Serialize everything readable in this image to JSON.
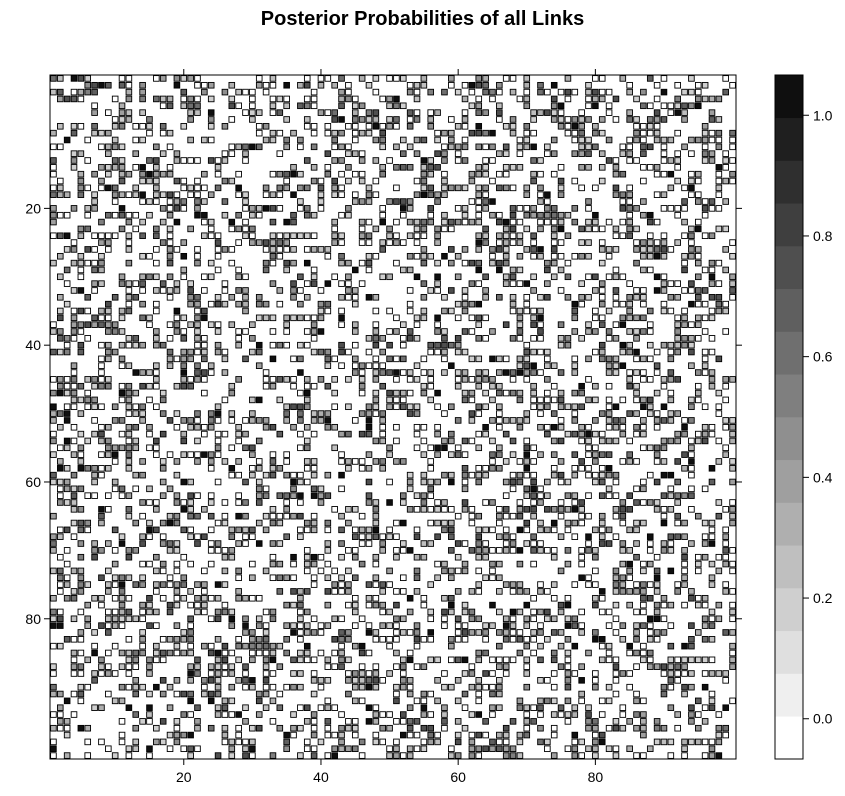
{
  "chart_data": {
    "type": "heatmap",
    "title": "Posterior Probabilities of all Links",
    "xlabel": "",
    "ylabel": "",
    "n_rows": 100,
    "n_cols": 100,
    "xlim": [
      1,
      100
    ],
    "ylim": [
      100,
      1
    ],
    "x_ticks": [
      20,
      40,
      60,
      80
    ],
    "y_ticks": [
      20,
      40,
      60,
      80
    ],
    "grid": false,
    "colorkey": {
      "position": "right",
      "ticks": [
        "0.0",
        "0.2",
        "0.4",
        "0.6",
        "0.8",
        "1.0"
      ],
      "tick_values": [
        0,
        0.2,
        0.4,
        0.6,
        0.8,
        1.0
      ],
      "levels": 16,
      "range": [
        -0.0667,
        1.0667
      ],
      "colors": [
        "#ffffff",
        "#efefef",
        "#dfdfdf",
        "#cfcfcf",
        "#bfbfbf",
        "#afafaf",
        "#9f9f9f",
        "#8f8f8f",
        "#7f7f7f",
        "#6f6f6f",
        "#5f5f5f",
        "#4f4f4f",
        "#3f3f3f",
        "#2f2f2f",
        "#1f1f1f",
        "#0f0f0f"
      ]
    },
    "cell_value_distribution": {
      "density": 0.4,
      "zero_fraction": 0.32,
      "low_fraction": 0.45,
      "high_fraction": 0.05
    }
  }
}
